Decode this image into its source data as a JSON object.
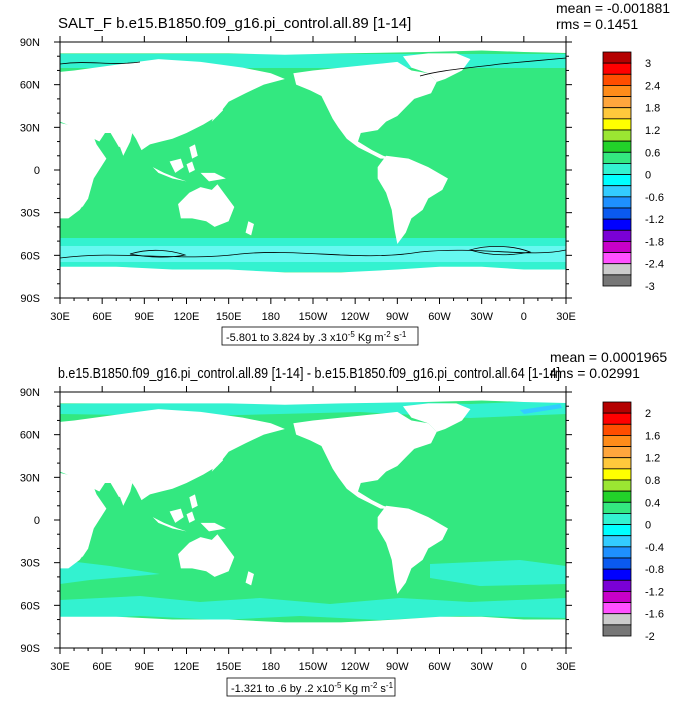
{
  "palette": {
    "ocean": "#33e880",
    "ocean_light": "#33f2d0",
    "ocean_cyan": "#66f8f0",
    "land": "#ffffff"
  },
  "panels": [
    {
      "title": "SALT_F b.e15.B1850.f09_g16.pi_control.all.89 [1-14]",
      "mean_text": "mean = -0.001881",
      "rms_text": "rms = 0.1451",
      "range_text": "-5.801 to 3.824 by .3 x10",
      "range_units": " Kg m",
      "lat_labels": [
        "90N",
        "60N",
        "30N",
        "0",
        "30S",
        "60S",
        "90S"
      ],
      "lon_labels": [
        "30E",
        "60E",
        "90E",
        "120E",
        "150E",
        "180",
        "150W",
        "120W",
        "90W",
        "60W",
        "30W",
        "0",
        "30E"
      ],
      "colorbar": {
        "labels": [
          "3",
          "2.4",
          "1.8",
          "1.2",
          "0.6",
          "0",
          "-0.6",
          "-1.2",
          "-1.8",
          "-2.4",
          "-3"
        ],
        "colors": [
          "#b40000",
          "#ff0000",
          "#ff4d00",
          "#ff8c1a",
          "#ffa63d",
          "#ffc83c",
          "#ffff00",
          "#9be632",
          "#22d22a",
          "#33e880",
          "#33f2d0",
          "#00ffff",
          "#33ccff",
          "#1e90ff",
          "#0a5af0",
          "#0000ff",
          "#7a00d6",
          "#c800c8",
          "#ff50ff",
          "#cccccc",
          "#777777"
        ]
      }
    },
    {
      "title": "b.e15.B1850.f09_g16.pi_control.all.89 [1-14] - b.e15.B1850.f09_g16.pi_control.all.64 [1-14]",
      "mean_text": "mean = 0.0001965",
      "rms_text": "rms = 0.02991",
      "range_text": "-1.321 to .6 by .2 x10",
      "range_units": " Kg m",
      "lat_labels": [
        "90N",
        "60N",
        "30N",
        "0",
        "30S",
        "60S",
        "90S"
      ],
      "lon_labels": [
        "30E",
        "60E",
        "90E",
        "120E",
        "150E",
        "180",
        "150W",
        "120W",
        "90W",
        "60W",
        "30W",
        "0",
        "30E"
      ],
      "colorbar": {
        "labels": [
          "2",
          "1.6",
          "1.2",
          "0.8",
          "0.4",
          "0",
          "-0.4",
          "-0.8",
          "-1.2",
          "-1.6",
          "-2"
        ],
        "colors": [
          "#b40000",
          "#ff0000",
          "#ff4d00",
          "#ff8c1a",
          "#ffa63d",
          "#ffc83c",
          "#ffff00",
          "#9be632",
          "#22d22a",
          "#33e880",
          "#33f2d0",
          "#00ffff",
          "#33ccff",
          "#1e90ff",
          "#0a5af0",
          "#0000ff",
          "#7a00d6",
          "#c800c8",
          "#ff50ff",
          "#cccccc",
          "#777777"
        ]
      }
    }
  ],
  "common": {
    "exp_text": "-5",
    "exp_m": "-2",
    "exp_s": "-1",
    "unit_s": " s"
  }
}
